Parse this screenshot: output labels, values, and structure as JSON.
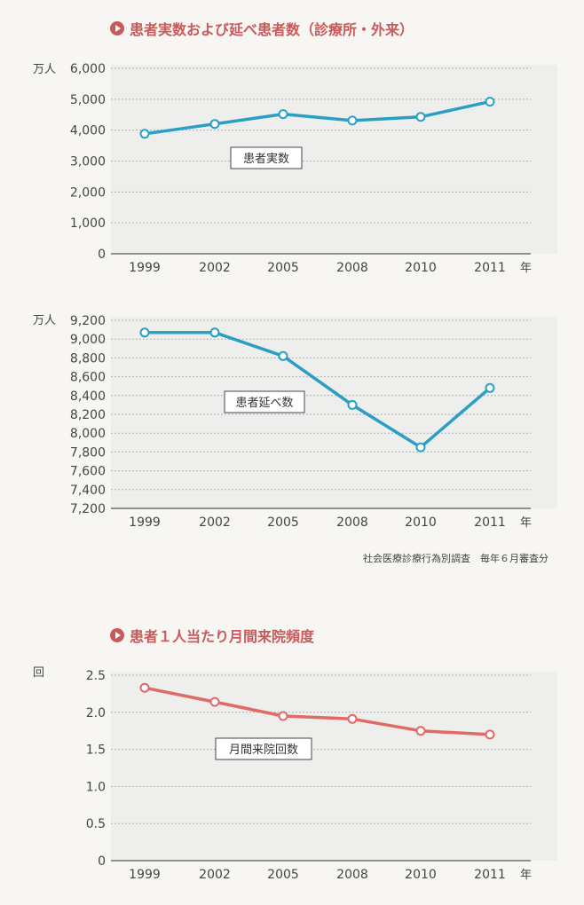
{
  "section1": {
    "title": "患者実数および延べ患者数（診療所・外来）"
  },
  "section2": {
    "title": "患者１人当たり月間来院頻度"
  },
  "source": "社会医療診療行為別調査　毎年６月審査分",
  "colors": {
    "blue": "#2a9fc5",
    "red": "#e06a66",
    "grid": "#9a9a9a",
    "heading": "#c9595b",
    "plot_bg": "#eeeeec"
  },
  "chart_data": [
    {
      "type": "line",
      "unit": "万人",
      "x_unit": "年",
      "categories": [
        "1999",
        "2002",
        "2005",
        "2008",
        "2010",
        "2011"
      ],
      "yticks": [
        "0",
        "1,000",
        "2,000",
        "3,000",
        "4,000",
        "5,000",
        "6,000"
      ],
      "ylim": [
        0,
        6000
      ],
      "series": [
        {
          "name": "患者実数",
          "values": [
            3880,
            4200,
            4520,
            4310,
            4430,
            4920
          ]
        }
      ],
      "label": "患者実数",
      "color": "#2a9fc5"
    },
    {
      "type": "line",
      "unit": "万人",
      "x_unit": "年",
      "categories": [
        "1999",
        "2002",
        "2005",
        "2008",
        "2010",
        "2011"
      ],
      "yticks": [
        "7,200",
        "7,400",
        "7,600",
        "7,800",
        "8,000",
        "8,200",
        "8,400",
        "8,600",
        "8,800",
        "9,000",
        "9,200"
      ],
      "ylim": [
        7200,
        9200
      ],
      "series": [
        {
          "name": "患者延べ数",
          "values": [
            9070,
            9070,
            8820,
            8300,
            7850,
            8480
          ]
        }
      ],
      "label": "患者延べ数",
      "color": "#2a9fc5"
    },
    {
      "type": "line",
      "unit": "回",
      "x_unit": "年",
      "categories": [
        "1999",
        "2002",
        "2005",
        "2008",
        "2010",
        "2011"
      ],
      "yticks": [
        "0",
        "0.5",
        "1.0",
        "1.5",
        "2.0",
        "2.5"
      ],
      "ylim": [
        0,
        2.5
      ],
      "series": [
        {
          "name": "月間来院回数",
          "values": [
            2.33,
            2.14,
            1.95,
            1.91,
            1.75,
            1.7
          ]
        }
      ],
      "label": "月間来院回数",
      "color": "#e06a66"
    }
  ]
}
